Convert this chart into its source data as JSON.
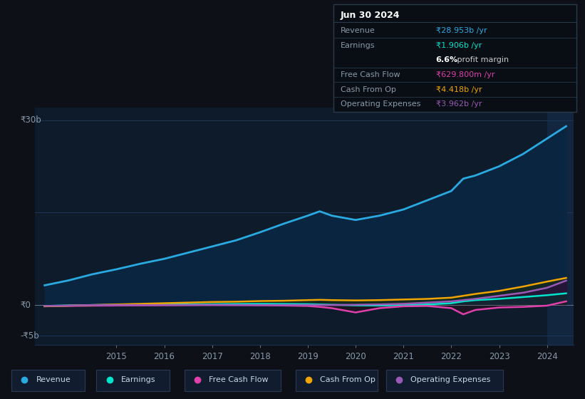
{
  "bg_color": "#0d1117",
  "plot_bg_color": "#0d1b2a",
  "grid_color": "#1e3a5f",
  "text_color": "#8899aa",
  "white": "#ffffff",
  "ylabel_30b": "₹30b",
  "ylabel_0": "₹0",
  "ylabel_neg5b": "-₹5b",
  "years": [
    2013.5,
    2014.0,
    2014.5,
    2015.0,
    2015.5,
    2016.0,
    2016.5,
    2017.0,
    2017.5,
    2018.0,
    2018.5,
    2019.0,
    2019.25,
    2019.5,
    2020.0,
    2020.5,
    2021.0,
    2021.5,
    2022.0,
    2022.25,
    2022.5,
    2023.0,
    2023.5,
    2024.0,
    2024.4
  ],
  "revenue": [
    3.2,
    4.0,
    5.0,
    5.8,
    6.7,
    7.5,
    8.5,
    9.5,
    10.5,
    11.8,
    13.2,
    14.5,
    15.2,
    14.5,
    13.8,
    14.5,
    15.5,
    17.0,
    18.5,
    20.5,
    21.0,
    22.5,
    24.5,
    27.0,
    29.0
  ],
  "earnings": [
    -0.15,
    -0.05,
    0.0,
    0.05,
    0.08,
    0.1,
    0.12,
    0.15,
    0.18,
    0.2,
    0.18,
    0.15,
    0.1,
    0.05,
    -0.05,
    -0.08,
    0.0,
    0.1,
    0.3,
    0.6,
    0.8,
    1.0,
    1.3,
    1.6,
    1.9
  ],
  "free_cash_flow": [
    -0.2,
    -0.15,
    -0.1,
    -0.08,
    -0.05,
    -0.03,
    0.0,
    0.02,
    0.0,
    -0.03,
    -0.08,
    -0.15,
    -0.3,
    -0.5,
    -1.2,
    -0.5,
    -0.2,
    -0.15,
    -0.5,
    -1.5,
    -0.8,
    -0.4,
    -0.3,
    -0.1,
    0.6
  ],
  "cash_from_op": [
    -0.2,
    -0.1,
    0.0,
    0.1,
    0.2,
    0.3,
    0.4,
    0.5,
    0.55,
    0.65,
    0.7,
    0.8,
    0.85,
    0.8,
    0.75,
    0.8,
    0.9,
    1.0,
    1.2,
    1.5,
    1.8,
    2.3,
    3.0,
    3.8,
    4.4
  ],
  "operating_expenses": [
    -0.15,
    -0.08,
    0.0,
    0.0,
    0.0,
    0.0,
    0.0,
    0.0,
    0.0,
    0.0,
    0.0,
    0.0,
    0.0,
    0.0,
    0.05,
    0.1,
    0.2,
    0.4,
    0.6,
    0.8,
    1.0,
    1.5,
    2.0,
    2.8,
    3.96
  ],
  "revenue_color": "#29abe2",
  "earnings_color": "#00e5cc",
  "free_cash_flow_color": "#e040ab",
  "cash_from_op_color": "#f0a500",
  "operating_expenses_color": "#9b59b6",
  "xlim": [
    2013.3,
    2024.55
  ],
  "ylim": [
    -6.5,
    32
  ],
  "xtick_positions": [
    2015,
    2016,
    2017,
    2018,
    2019,
    2020,
    2021,
    2022,
    2023,
    2024
  ],
  "xtick_labels": [
    "2015",
    "2016",
    "2017",
    "2018",
    "2019",
    "2020",
    "2021",
    "2022",
    "2023",
    "2024"
  ],
  "highlight_x_start": 2024.0,
  "highlight_x_end": 2024.55,
  "info_box": {
    "title": "Jun 30 2024",
    "title_color": "#ffffff",
    "bg": "#080e14",
    "border": "#2a3a4a",
    "label_color": "#8899aa",
    "rows": [
      {
        "label": "Revenue",
        "value": "₹28.953b /yr",
        "value_color": "#29abe2"
      },
      {
        "label": "Earnings",
        "value": "₹1.906b /yr",
        "value_color": "#00e5cc"
      },
      {
        "label": "",
        "value": " profit margin",
        "value_color": "#cccccc",
        "bold_prefix": "6.6%"
      },
      {
        "label": "Free Cash Flow",
        "value": "₹629.800m /yr",
        "value_color": "#e040ab"
      },
      {
        "label": "Cash From Op",
        "value": "₹4.418b /yr",
        "value_color": "#f0a500"
      },
      {
        "label": "Operating Expenses",
        "value": "₹3.962b /yr",
        "value_color": "#9b59b6"
      }
    ]
  },
  "legend": [
    {
      "label": "Revenue",
      "color": "#29abe2"
    },
    {
      "label": "Earnings",
      "color": "#00e5cc"
    },
    {
      "label": "Free Cash Flow",
      "color": "#e040ab"
    },
    {
      "label": "Cash From Op",
      "color": "#f0a500"
    },
    {
      "label": "Operating Expenses",
      "color": "#9b59b6"
    }
  ]
}
